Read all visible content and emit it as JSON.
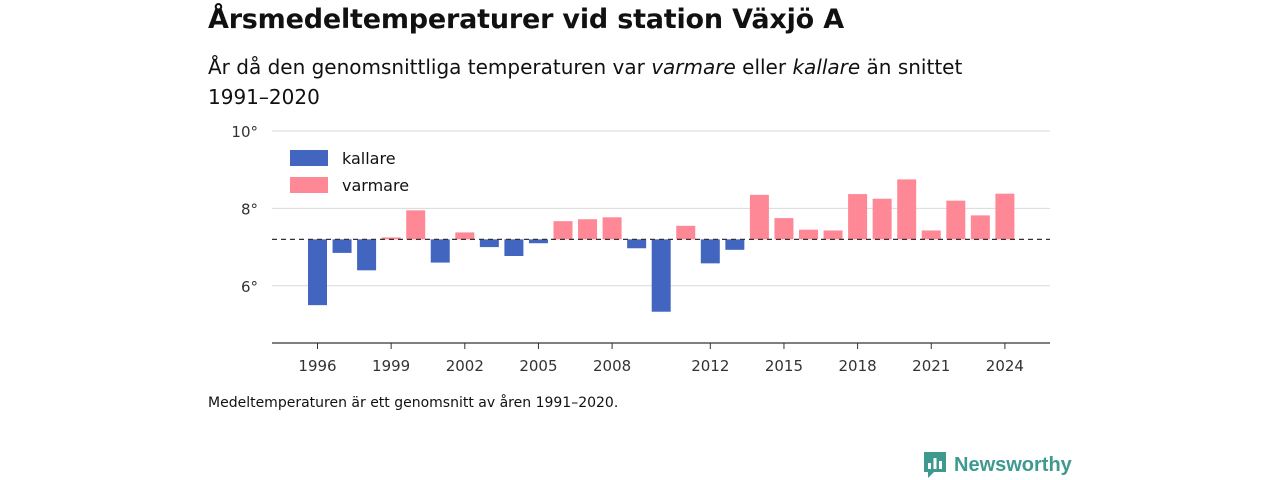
{
  "title": "Årsmedeltemperaturer vid station Växjö A",
  "subtitle": {
    "part1": "År då den genomsnittliga temperaturen var ",
    "warm_word": "varmare",
    "part2": " eller ",
    "cold_word": "kallare",
    "part3": " än snittet 1991–2020"
  },
  "note": "Medeltemperaturen är ett genomsnitt av åren 1991–2020.",
  "brand": {
    "name": "Newsworthy",
    "icon": "newsworthy-logo-icon"
  },
  "colors": {
    "kallare": "#4266c0",
    "varmare": "#ff8896",
    "grid": "#d9d9d9",
    "axis": "#333333",
    "baseline": "#333333",
    "brand": "#3e9a8e"
  },
  "chart_data": {
    "type": "bar",
    "title": "Årsmedeltemperaturer vid station Växjö A",
    "ylim": [
      4.5,
      10
    ],
    "yticks": [
      6,
      8,
      10
    ],
    "ytick_labels": [
      "6°",
      "8°",
      "10°"
    ],
    "xticks": [
      1996,
      1999,
      2002,
      2005,
      2008,
      2012,
      2015,
      2018,
      2021,
      2024
    ],
    "xtick_labels": [
      "1996",
      "1999",
      "2002",
      "2005",
      "2008",
      "2012",
      "2015",
      "2018",
      "2021",
      "2024"
    ],
    "baseline": 7.2,
    "grid": true,
    "legend": {
      "placement": "top-left",
      "entries": [
        "kallare",
        "varmare"
      ]
    },
    "series": [
      {
        "name": "kallare",
        "color": "#4266c0"
      },
      {
        "name": "varmare",
        "color": "#ff8896"
      }
    ],
    "x": [
      1996,
      1997,
      1998,
      1999,
      2000,
      2001,
      2002,
      2003,
      2004,
      2005,
      2006,
      2007,
      2008,
      2009,
      2010,
      2011,
      2012,
      2013,
      2014,
      2015,
      2016,
      2017,
      2018,
      2019,
      2020,
      2021,
      2022,
      2023,
      2024
    ],
    "values": [
      5.5,
      6.85,
      6.4,
      7.25,
      7.95,
      6.6,
      7.38,
      7.0,
      6.77,
      7.1,
      7.67,
      7.72,
      7.77,
      6.97,
      5.33,
      7.55,
      6.58,
      6.93,
      8.35,
      7.75,
      7.45,
      7.43,
      8.37,
      8.25,
      8.75,
      7.43,
      8.2,
      7.82,
      8.38
    ]
  }
}
